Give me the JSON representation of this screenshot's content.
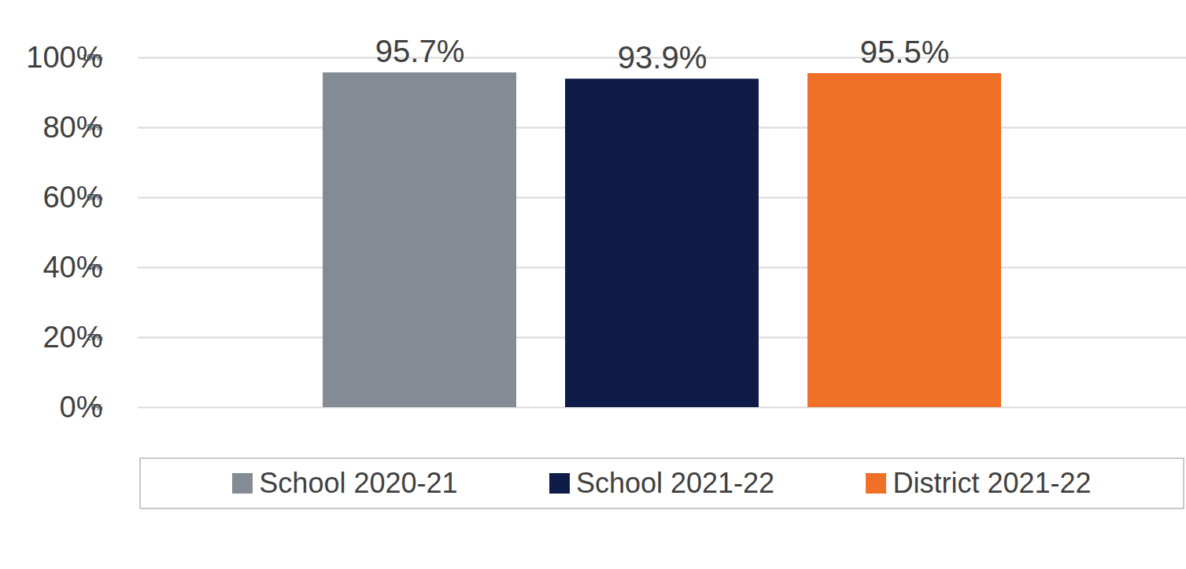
{
  "chart_data": {
    "type": "bar",
    "categories": [
      "School 2020-21",
      "School 2021-22",
      "District 2021-22"
    ],
    "values": [
      95.7,
      93.9,
      95.5
    ],
    "value_labels": [
      "95.7%",
      "93.9%",
      "95.5%"
    ],
    "colors": [
      "#858b94",
      "#0f1c48",
      "#f07028"
    ],
    "ylim": [
      0,
      100
    ],
    "yticks": [
      {
        "value": 0,
        "label": "0%"
      },
      {
        "value": 20,
        "label": "20%"
      },
      {
        "value": 40,
        "label": "40%"
      },
      {
        "value": 60,
        "label": "60%"
      },
      {
        "value": 80,
        "label": "80%"
      },
      {
        "value": 100,
        "label": "100%"
      }
    ],
    "grid": true,
    "data_labels": true,
    "tick_labels": "y",
    "legend": "bottom"
  }
}
